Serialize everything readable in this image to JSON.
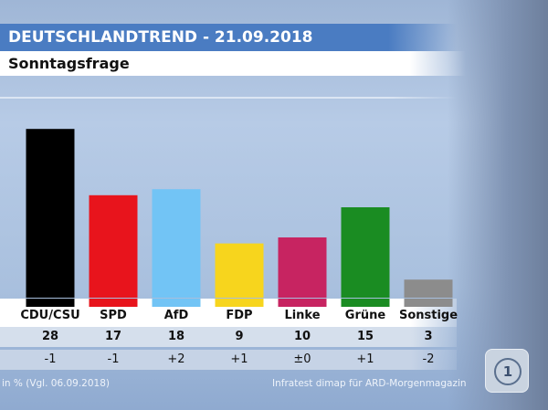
{
  "header": {
    "title": "DEUTSCHLANDTREND - 21.09.2018",
    "subtitle": "Sonntagsfrage"
  },
  "chart_data": {
    "type": "bar",
    "title": "Sonntagsfrage",
    "categories": [
      "CDU/CSU",
      "SPD",
      "AfD",
      "FDP",
      "Linke",
      "Grüne",
      "Sonstige"
    ],
    "values": [
      28,
      17,
      18,
      9,
      10,
      15,
      3
    ],
    "changes": [
      "-1",
      "-1",
      "+2",
      "+1",
      "±0",
      "+1",
      "-2"
    ],
    "colors": [
      "#000000",
      "#e8141c",
      "#72c4f5",
      "#f7d51d",
      "#c72461",
      "#1a8c22",
      "#8c8c8c"
    ],
    "unit_note": "in % (Vgl. 06.09.2018)",
    "ylim": [
      0,
      30
    ],
    "grid": false
  },
  "footer": {
    "note": "in % (Vgl. 06.09.2018)",
    "source": "Infratest dimap für ARD-Morgenmagazin"
  },
  "logo": {
    "text": "1"
  }
}
